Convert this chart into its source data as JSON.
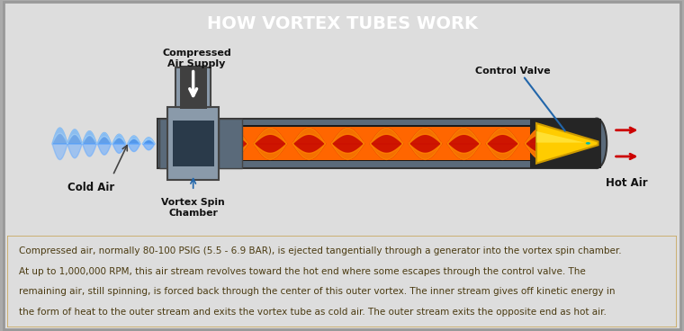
{
  "title": "HOW VORTEX TUBES WORK",
  "title_bg": "#F0920A",
  "title_color": "#FFFFFF",
  "body_bg": "#FFFFFF",
  "text_bg": "#F5E6C8",
  "text_border": "#C8A860",
  "body_text_line1": "Compressed air, normally 80-100 PSIG (5.5 - 6.9 BAR), is ejected tangentially through a generator into the vortex spin chamber.",
  "body_text_line2": "At up to 1,000,000 RPM, this air stream revolves toward the hot end where some escapes through the control valve. The",
  "body_text_line3": "remaining air, still spinning, is forced back through the center of this outer vortex. The inner stream gives off kinetic energy in",
  "body_text_line4": "the form of heat to the outer stream and exits the vortex tube as cold air. The outer stream exits the opposite end as hot air.",
  "label_cold_air": "Cold Air",
  "label_vortex": "Vortex Spin\nChamber",
  "label_compressed": "Compressed\nAir Supply",
  "label_control": "Control Valve",
  "label_hot": "Hot Air",
  "tube_outer_color": "#5A6A7A",
  "tube_inner_color": "#2A2A2A",
  "chamber_color": "#8A9AAA",
  "pipe_color": "#404040",
  "pipe_outer_color": "#8A9AAA",
  "orange_color": "#FF6600",
  "red_color": "#CC1100",
  "blue_cold": "#3388EE",
  "blue_light": "#66AAFF",
  "yellow_cone": "#FFCC00",
  "yellow_dark": "#CC9900",
  "hot_arrow_color": "#CC0000",
  "text_color": "#4A3A10",
  "label_color": "#111111",
  "control_line_color": "#2266AA"
}
